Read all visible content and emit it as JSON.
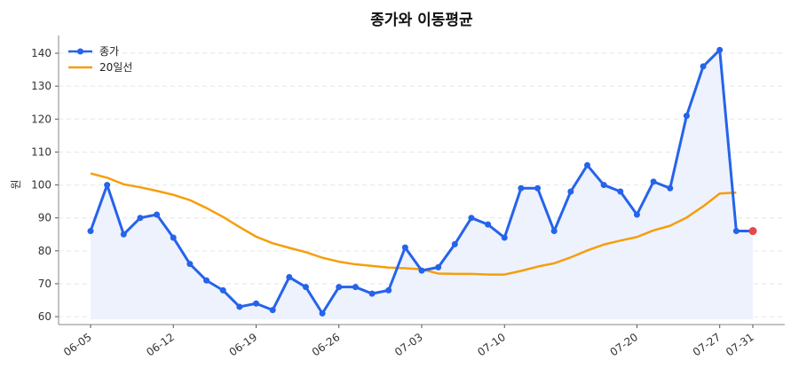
{
  "chart_data": {
    "type": "line",
    "title": "종가와 이동평균",
    "xlabel": "",
    "ylabel": "원",
    "ylim": [
      57.6,
      145.4
    ],
    "yticks": [
      60,
      70,
      80,
      90,
      100,
      110,
      120,
      130,
      140
    ],
    "grid": "y-dashed",
    "legend": "top-left",
    "x": [
      "06-05",
      "06-06",
      "06-07",
      "06-08",
      "06-09",
      "06-12",
      "06-13",
      "06-14",
      "06-15",
      "06-16",
      "06-19",
      "06-20",
      "06-21",
      "06-22",
      "06-23",
      "06-26",
      "06-27",
      "06-28",
      "06-29",
      "06-30",
      "07-03",
      "07-04",
      "07-05",
      "07-06",
      "07-07",
      "07-10",
      "07-11",
      "07-12",
      "07-13",
      "07-14",
      "07-17",
      "07-18",
      "07-19",
      "07-20",
      "07-21",
      "07-24",
      "07-25",
      "07-26",
      "07-27",
      "07-28",
      "07-31"
    ],
    "xticks": [
      "06-05",
      "06-12",
      "06-19",
      "06-26",
      "07-03",
      "07-10",
      "07-20",
      "07-27",
      "07-31"
    ],
    "series": [
      {
        "name": "종가",
        "color": "#2563eb",
        "marker": "circle",
        "fill": "#eef2fd",
        "last_point_color": "#e5484d",
        "values": [
          86,
          100,
          85,
          90,
          91,
          84,
          76,
          71,
          68,
          63,
          64,
          62,
          72,
          69,
          61,
          69,
          69,
          67,
          68,
          81,
          74,
          75,
          82,
          90,
          88,
          84,
          99,
          99,
          86,
          98,
          106,
          100,
          98,
          91,
          101,
          99,
          121,
          136,
          141,
          86,
          86
        ]
      },
      {
        "name": "20일선",
        "color": "#f59e0b",
        "marker": "none",
        "values": [
          103.5,
          102.2,
          100.2,
          99.3,
          98.2,
          97,
          95.4,
          93,
          90.3,
          87.2,
          84.3,
          82.3,
          80.9,
          79.6,
          77.9,
          76.7,
          75.9,
          75.4,
          74.9,
          74.7,
          74.4,
          73.1,
          73,
          73,
          72.8,
          72.8,
          73.9,
          75.2,
          76.2,
          78,
          80.1,
          81.9,
          83.1,
          84.2,
          86.2,
          87.6,
          90.1,
          93.5,
          97.4,
          97.7,
          null
        ]
      }
    ]
  }
}
